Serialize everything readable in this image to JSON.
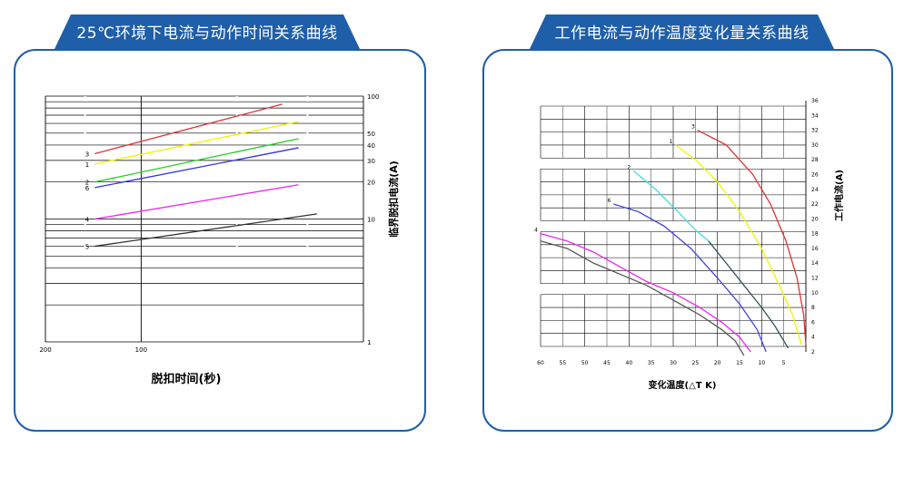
{
  "colors": {
    "tab_blue": "#1f5ea8",
    "border_blue": "#1f5ea8",
    "grid": "#000000"
  },
  "left_panel": {
    "title": "25℃环境下电流与动作时间关系曲线"
  },
  "right_panel": {
    "title": "工作电流与动作温度变化量关系曲线"
  },
  "chart_data": [
    {
      "type": "line",
      "title": "25℃环境下电流与动作时间关系曲线",
      "xlabel": "脱扣时间(秒)",
      "ylabel": "临界脱扣电流(A)",
      "x_tick_labels": [
        "200",
        "100"
      ],
      "y_tick_labels": [
        "100",
        "50",
        "40",
        "30",
        "20",
        "10",
        "1"
      ],
      "grid": true,
      "series": [
        {
          "name": "3",
          "color": "#d9363e",
          "x": [
            140,
            36
          ],
          "y": [
            34,
            86
          ]
        },
        {
          "name": "1",
          "color": "#f2f200",
          "x": [
            140,
            32
          ],
          "y": [
            28,
            62
          ]
        },
        {
          "name": "2",
          "color": "#22cc22",
          "x": [
            140,
            32
          ],
          "y": [
            20,
            45
          ]
        },
        {
          "name": "6",
          "color": "#3333dd",
          "x": [
            140,
            32
          ],
          "y": [
            18,
            38
          ]
        },
        {
          "name": "4",
          "color": "#ee22ee",
          "x": [
            140,
            32
          ],
          "y": [
            10,
            19
          ]
        },
        {
          "name": "5",
          "color": "#333333",
          "x": [
            140,
            28
          ],
          "y": [
            6,
            11
          ]
        }
      ]
    },
    {
      "type": "line",
      "title": "工作电流与动作温度变化量关系曲线",
      "xlabel": "变化温度(△T K)",
      "ylabel": "工作电流(A)",
      "x_tick_labels": [
        "60",
        "55",
        "50",
        "45",
        "40",
        "35",
        "30",
        "25",
        "20",
        "15",
        "10",
        "5"
      ],
      "y_tick_labels": [
        "36",
        "34",
        "32",
        "30",
        "28",
        "26",
        "24",
        "22",
        "20",
        "18",
        "16",
        "14",
        "12",
        "10",
        "8",
        "6",
        "4",
        "2"
      ],
      "grid": true,
      "series": [
        {
          "name": "3",
          "color": "#dd3333",
          "x": [
            24.5,
            18,
            12,
            8,
            4.5,
            2,
            0.5,
            0
          ],
          "y": [
            32,
            30,
            26,
            22,
            17,
            12,
            7,
            3
          ]
        },
        {
          "name": "1",
          "color": "#f2f200",
          "x": [
            29.5,
            25,
            20,
            15,
            10,
            6,
            3,
            1
          ],
          "y": [
            30,
            28,
            25,
            21,
            16,
            11,
            7,
            3
          ]
        },
        {
          "name": "2",
          "color": "#44dddd",
          "x": [
            39,
            34,
            29,
            25,
            22
          ],
          "y": [
            26.5,
            24,
            21,
            18.5,
            17
          ]
        },
        {
          "name": "2",
          "color": "#335555",
          "x": [
            22,
            18,
            14,
            10,
            7,
            4
          ],
          "y": [
            17,
            14,
            11,
            8,
            5.5,
            2.5
          ]
        },
        {
          "name": "6",
          "color": "#4444dd",
          "x": [
            43.5,
            38,
            32,
            26,
            20,
            15,
            11,
            9
          ],
          "y": [
            22,
            21,
            19,
            16,
            12,
            8.5,
            5,
            2
          ]
        },
        {
          "name": "4",
          "color": "#ee22ee",
          "x": [
            60,
            54,
            48,
            42,
            36,
            30,
            24,
            19,
            15,
            12.5
          ],
          "y": [
            18,
            17,
            15.5,
            13.5,
            11.5,
            10,
            8,
            6,
            4,
            2
          ]
        },
        {
          "name": "",
          "color": "#555555",
          "x": [
            60,
            54,
            48,
            42,
            36,
            30,
            24,
            19,
            16,
            14
          ],
          "y": [
            17,
            16,
            14,
            12.5,
            11,
            9,
            7,
            5,
            3.5,
            1.5
          ]
        }
      ]
    }
  ]
}
